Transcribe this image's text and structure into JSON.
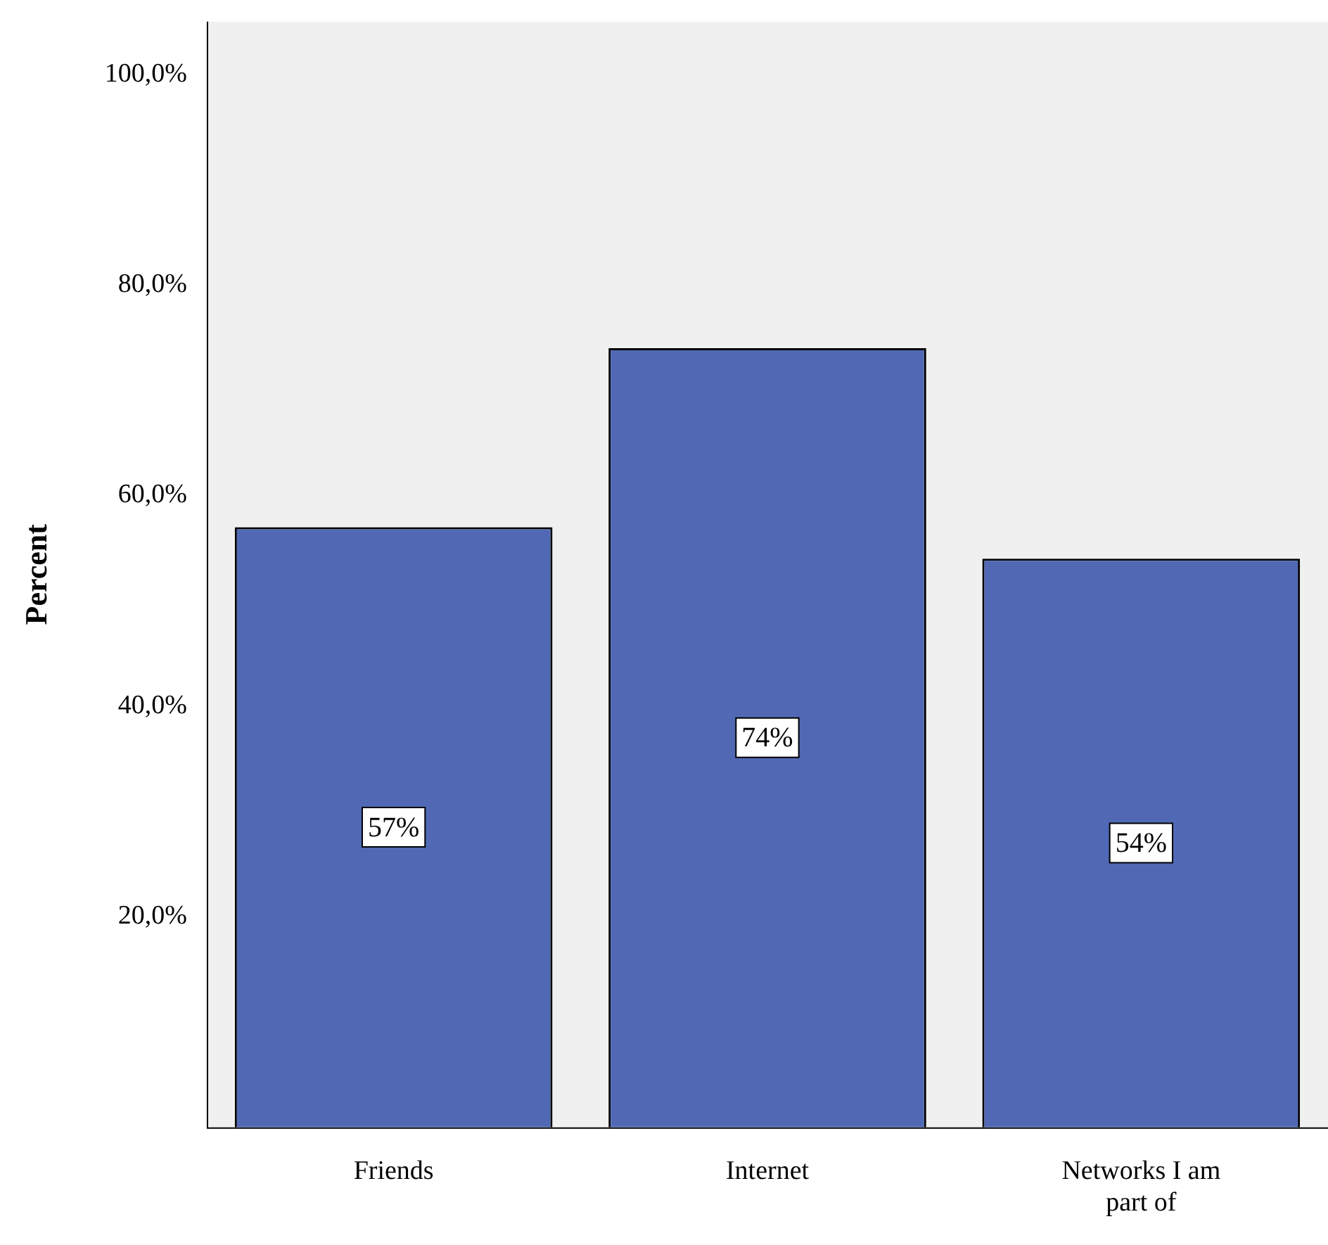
{
  "chart_data": {
    "type": "bar",
    "ylabel": "Percent",
    "categories": [
      "Friends",
      "Internet",
      "Networks I am part of"
    ],
    "values": [
      57,
      74,
      54
    ],
    "value_labels": [
      "57%",
      "74%",
      "54%"
    ],
    "color": "#5169b5",
    "ylim": [
      0,
      105
    ],
    "yticks": [
      {
        "value": 20,
        "label": "20,0%"
      },
      {
        "value": 40,
        "label": "40,0%"
      },
      {
        "value": 60,
        "label": "60,0%"
      },
      {
        "value": 80,
        "label": "80,0%"
      },
      {
        "value": 100,
        "label": "100,0%"
      }
    ],
    "grid": false,
    "legend": false
  }
}
